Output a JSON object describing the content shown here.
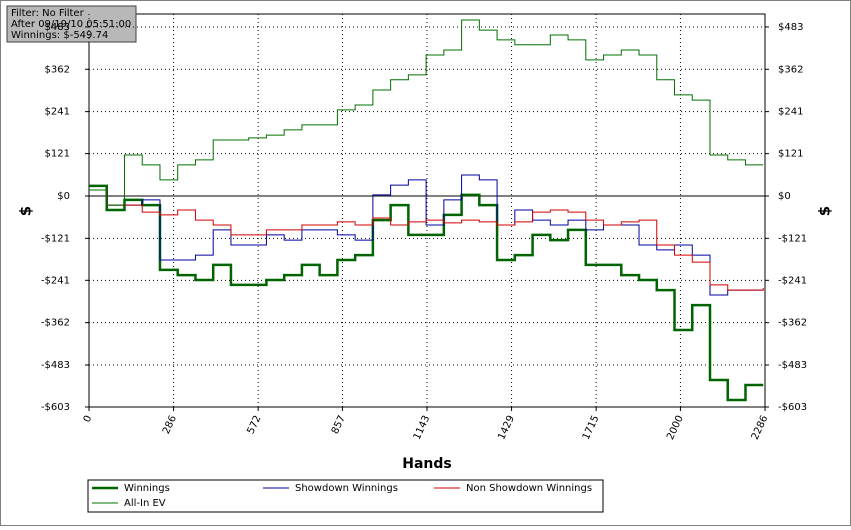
{
  "chart_data": {
    "type": "step-line",
    "info": [
      "Filter: No Filter",
      "After 09/19/10 05:51:00",
      "Winnings: $-549.74"
    ],
    "xlabel": "Hands",
    "ylabel": "$",
    "y2label": "$",
    "xlim": [
      0,
      2286
    ],
    "xticks": [
      0,
      286,
      572,
      857,
      1143,
      1429,
      1715,
      2000,
      2286
    ],
    "ylim": [
      -603,
      520
    ],
    "yticks": [
      {
        "value": 483,
        "label": "$483"
      },
      {
        "value": 362,
        "label": "$362"
      },
      {
        "value": 241,
        "label": "$241"
      },
      {
        "value": 121,
        "label": "$121"
      },
      {
        "value": 0,
        "label": "$0"
      },
      {
        "value": -121,
        "label": "-$121"
      },
      {
        "value": -241,
        "label": "-$241"
      },
      {
        "value": -362,
        "label": "-$362"
      },
      {
        "value": -483,
        "label": "-$483"
      },
      {
        "value": -603,
        "label": "-$603"
      }
    ],
    "y2ticks": [
      {
        "value": 483,
        "label": "$483"
      },
      {
        "value": 362,
        "label": "$362"
      },
      {
        "value": 241,
        "label": "$241"
      },
      {
        "value": 121,
        "label": "$121"
      },
      {
        "value": 0,
        "label": "$0"
      },
      {
        "value": -121,
        "label": "-$121"
      },
      {
        "value": -241,
        "label": "-$241"
      },
      {
        "value": -362,
        "label": "-$362"
      },
      {
        "value": -483,
        "label": "-$483"
      },
      {
        "value": -603,
        "label": "-$603"
      }
    ],
    "grid": true,
    "zero_line": true,
    "x": [
      0,
      60,
      120,
      180,
      240,
      300,
      360,
      420,
      480,
      540,
      600,
      660,
      720,
      780,
      840,
      900,
      960,
      1020,
      1080,
      1140,
      1200,
      1260,
      1320,
      1380,
      1440,
      1500,
      1560,
      1620,
      1680,
      1740,
      1800,
      1860,
      1920,
      1980,
      2040,
      2100,
      2160,
      2220,
      2280
    ],
    "series": [
      {
        "name": "Winnings",
        "color": "#006400",
        "width": 2.5,
        "values": [
          29,
          -40,
          -11,
          -26,
          -211,
          -226,
          -240,
          -197,
          -254,
          -254,
          -240,
          -226,
          -197,
          -226,
          -183,
          -169,
          -69,
          -26,
          -111,
          -111,
          -54,
          3,
          -26,
          -183,
          -169,
          -111,
          -126,
          -97,
          -197,
          -197,
          -226,
          -240,
          -269,
          -383,
          -312,
          -526,
          -583,
          -540,
          -540
        ]
      },
      {
        "name": "Showdown Winnings",
        "color": "#0000a0",
        "width": 1,
        "values": [
          17,
          -26,
          -26,
          -11,
          -183,
          -183,
          -169,
          -97,
          -140,
          -140,
          -111,
          -126,
          -97,
          -97,
          -111,
          -126,
          3,
          31,
          46,
          -83,
          -11,
          60,
          46,
          -83,
          -40,
          -69,
          -83,
          -69,
          -97,
          -83,
          -83,
          -140,
          -154,
          -140,
          -169,
          -283,
          -269,
          -269,
          -269
        ]
      },
      {
        "name": "Non Showdown Winnings",
        "color": "#d00000",
        "width": 1,
        "values": [
          17,
          -26,
          -26,
          -46,
          -54,
          -40,
          -69,
          -83,
          -111,
          -111,
          -97,
          -97,
          -83,
          -83,
          -74,
          -83,
          -63,
          -83,
          -74,
          -69,
          -77,
          -69,
          -74,
          -83,
          -74,
          -46,
          -40,
          -46,
          -69,
          -83,
          -74,
          -69,
          -140,
          -169,
          -189,
          -254,
          -269,
          -269,
          -263
        ]
      },
      {
        "name": "All-In EV",
        "color": "#007000",
        "width": 1,
        "values": [
          17,
          -26,
          117,
          89,
          46,
          89,
          103,
          160,
          160,
          166,
          174,
          189,
          203,
          203,
          246,
          260,
          303,
          332,
          346,
          403,
          417,
          503,
          474,
          446,
          432,
          432,
          460,
          446,
          389,
          403,
          417,
          403,
          332,
          289,
          274,
          117,
          103,
          89,
          89
        ]
      }
    ]
  }
}
